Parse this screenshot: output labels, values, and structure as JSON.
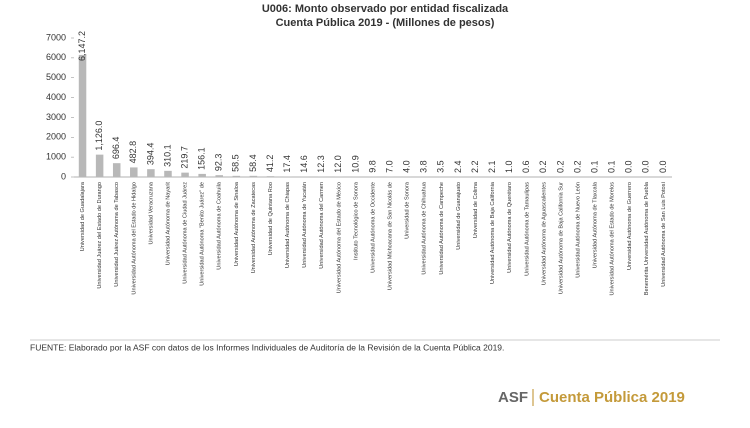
{
  "chart_data": {
    "type": "bar",
    "title": "U006: Monto observado por entidad fiscalizada",
    "subtitle": "Cuenta Pública 2019 - (Millones de pesos)",
    "categories": [
      "Universidad de Guadalajara",
      "Universidad Juárez del Estado de Durango",
      "Universidad Juárez Autónoma de Tabasco",
      "Universidad Autónoma del Estado de Hidalgo",
      "Universidad Veracruzana",
      "Universidad Autónoma de Nayarit",
      "Universidad Autónoma de Ciudad Juárez",
      "Universidad Autónoma \"Benito Juárez\" de",
      "Universidad Autónoma de Coahuila",
      "Universidad Autónoma de Sinaloa",
      "Universidad Autónoma de Zacatecas",
      "Universidad de Quintana Roo",
      "Universidad Autónoma de Chiapas",
      "Universidad Autónoma de Yucatán",
      "Universidad Autónoma del Carmen",
      "Universidad Autónoma del Estado de México",
      "Instituto Tecnológico de Sonora",
      "Universidad Autónoma de Occidente",
      "Universidad Michoacana de San Nicolás de",
      "Universidad de Sonora",
      "Universidad Autónoma de Chihuahua",
      "Universidad Autónoma de Campeche",
      "Universidad de Guanajuato",
      "Universidad de Colima",
      "Universidad Autónoma de Baja California",
      "Universidad Autónoma de Querétaro",
      "Universidad Autónoma de Tamaulipas",
      "Universidad Autónoma de Aguascalientes",
      "Universidad Autónoma de Baja California Sur",
      "Universidad Autónoma de Nuevo León",
      "Universidad Autónoma de Tlaxcala",
      "Universidad Autónoma del Estado de Morelos",
      "Universidad Autónoma de Guerrero",
      "Benemérita Universidad Autónoma de Puebla",
      "Universidad Autónoma de San Luis Potosí"
    ],
    "values": [
      6147.2,
      1126.0,
      696.4,
      482.8,
      394.4,
      310.1,
      219.7,
      156.1,
      92.3,
      58.5,
      58.4,
      41.2,
      17.4,
      14.6,
      12.3,
      12.0,
      10.9,
      9.8,
      7.0,
      4.0,
      3.8,
      3.5,
      2.4,
      2.2,
      2.1,
      1.0,
      0.6,
      0.2,
      0.2,
      0.2,
      0.1,
      0.1,
      0.0,
      0.0,
      0.0
    ],
    "value_labels": [
      "6,147.2",
      "1,126.0",
      "696.4",
      "482.8",
      "394.4",
      "310.1",
      "219.7",
      "156.1",
      "92.3",
      "58.5",
      "58.4",
      "41.2",
      "17.4",
      "14.6",
      "12.3",
      "12.0",
      "10.9",
      "9.8",
      "7.0",
      "4.0",
      "3.8",
      "3.5",
      "2.4",
      "2.2",
      "2.1",
      "1.0",
      "0.6",
      "0.2",
      "0.2",
      "0.2",
      "0.1",
      "0.1",
      "0.0",
      "0.0",
      "0.0"
    ],
    "color": "#b8b8b8",
    "ylim": [
      0,
      7000
    ],
    "yticks": [
      0,
      1000,
      2000,
      3000,
      4000,
      5000,
      6000,
      7000
    ],
    "grid": false,
    "source": "FUENTE: Elaborado por la ASF con datos de los Informes Individuales de Auditoría de la Revisión de la Cuenta Pública 2019."
  },
  "footer": {
    "brand": "ASF",
    "publication": "Cuenta Pública 2019"
  }
}
